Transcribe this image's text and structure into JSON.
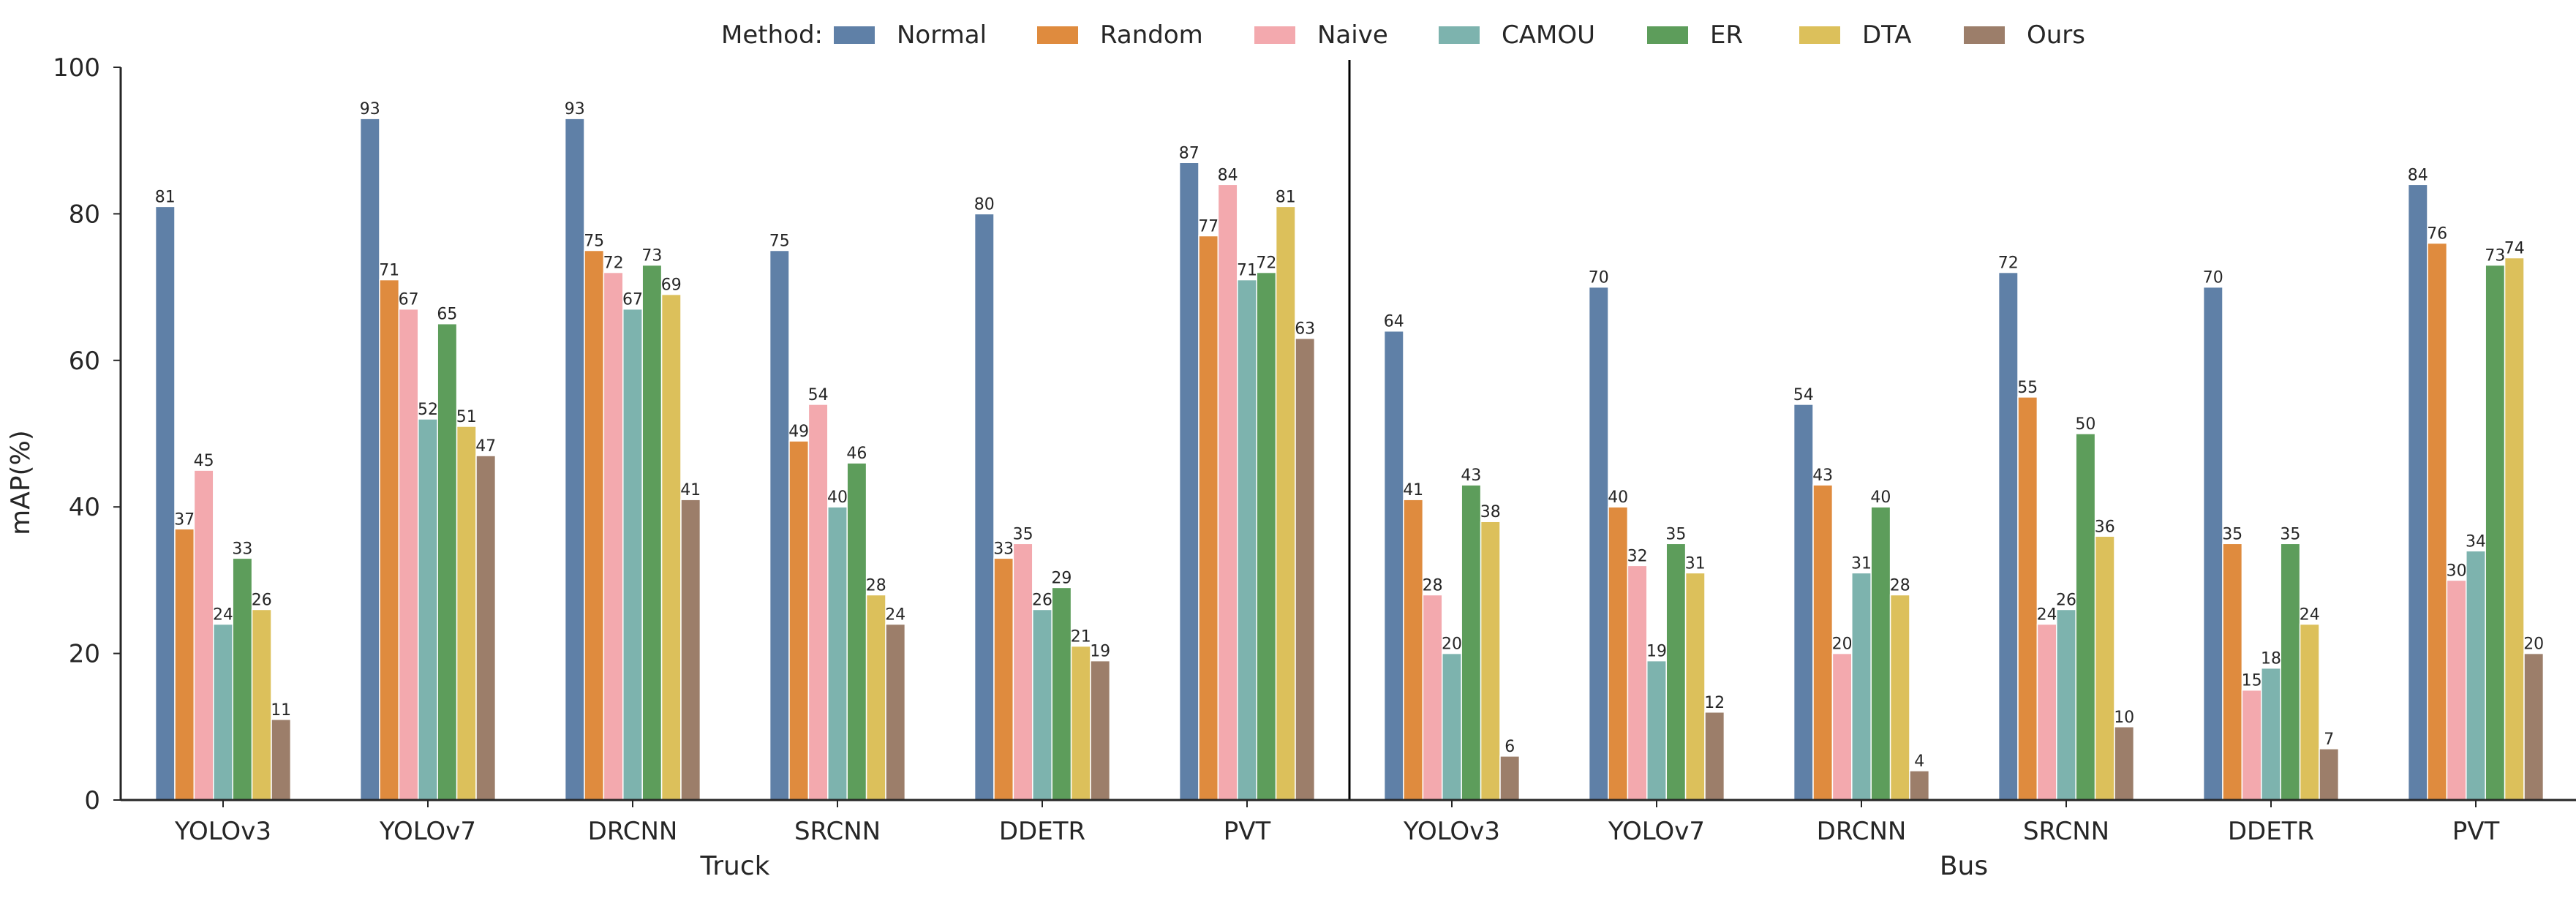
{
  "chart_data": {
    "type": "bar",
    "ylabel": "mAP(%)",
    "ylim": [
      0,
      100
    ],
    "yticks": [
      0,
      20,
      40,
      60,
      80,
      100
    ],
    "grid": false,
    "legend": {
      "title": "Method:",
      "placement": "top-center",
      "entries": [
        "Normal",
        "Random",
        "Naive",
        "CAMOU",
        "ER",
        "DTA",
        "Ours"
      ]
    },
    "colors": {
      "Normal": "#5f80a7",
      "Random": "#df8b3e",
      "Naive": "#f3a9ae",
      "CAMOU": "#7db3ae",
      "ER": "#5d9d5b",
      "DTA": "#dcc05b",
      "Ours": "#9c7e6a"
    },
    "groups": [
      {
        "name": "Truck",
        "categories": [
          "YOLOv3",
          "YOLOv7",
          "DRCNN",
          "SRCNN",
          "DDETR",
          "PVT"
        ],
        "series": [
          {
            "name": "Normal",
            "values": [
              81,
              93,
              93,
              75,
              80,
              87
            ]
          },
          {
            "name": "Random",
            "values": [
              37,
              71,
              75,
              49,
              33,
              77
            ]
          },
          {
            "name": "Naive",
            "values": [
              45,
              67,
              72,
              54,
              35,
              84
            ]
          },
          {
            "name": "CAMOU",
            "values": [
              24,
              52,
              67,
              40,
              26,
              71
            ]
          },
          {
            "name": "ER",
            "values": [
              33,
              65,
              73,
              46,
              29,
              72
            ]
          },
          {
            "name": "DTA",
            "values": [
              26,
              51,
              69,
              28,
              21,
              81
            ]
          },
          {
            "name": "Ours",
            "values": [
              11,
              47,
              41,
              24,
              19,
              63
            ]
          }
        ]
      },
      {
        "name": "Bus",
        "categories": [
          "YOLOv3",
          "YOLOv7",
          "DRCNN",
          "SRCNN",
          "DDETR",
          "PVT"
        ],
        "series": [
          {
            "name": "Normal",
            "values": [
              64,
              70,
              54,
              72,
              70,
              84
            ]
          },
          {
            "name": "Random",
            "values": [
              41,
              40,
              43,
              55,
              35,
              76
            ]
          },
          {
            "name": "Naive",
            "values": [
              28,
              32,
              20,
              24,
              15,
              30
            ]
          },
          {
            "name": "CAMOU",
            "values": [
              20,
              19,
              31,
              26,
              18,
              34
            ]
          },
          {
            "name": "ER",
            "values": [
              43,
              35,
              40,
              50,
              35,
              73
            ]
          },
          {
            "name": "DTA",
            "values": [
              38,
              31,
              28,
              36,
              24,
              74
            ]
          },
          {
            "name": "Ours",
            "values": [
              6,
              12,
              4,
              10,
              7,
              20
            ]
          }
        ]
      }
    ]
  }
}
